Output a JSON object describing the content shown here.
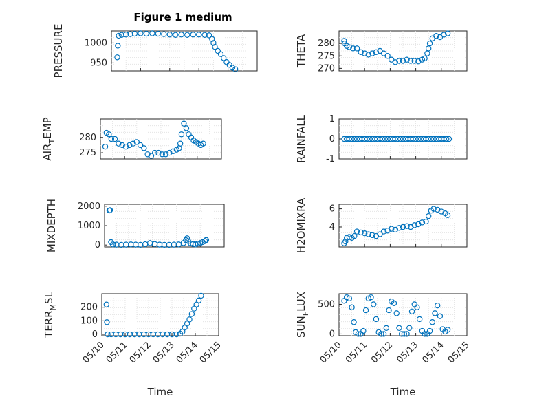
{
  "figure": {
    "title": "Figure 1 medium",
    "marker_color": "#0072BD"
  },
  "chart_data": [
    {
      "type": "scatter",
      "id": "pressure",
      "ylabel": "PRESSURE",
      "xlim": [
        0,
        5
      ],
      "ylim": [
        930,
        1030
      ],
      "yticks": [
        950,
        1000
      ],
      "ytick_labels": [
        "950",
        "1000"
      ],
      "xticks": [
        0,
        1,
        2,
        3,
        4,
        5
      ],
      "xtick_labels": [],
      "points": [
        [
          0.2,
          964
        ],
        [
          0.22,
          993
        ],
        [
          0.25,
          1018
        ],
        [
          0.35,
          1020
        ],
        [
          0.5,
          1021
        ],
        [
          0.65,
          1022
        ],
        [
          0.8,
          1023
        ],
        [
          1.0,
          1024
        ],
        [
          1.2,
          1023
        ],
        [
          1.4,
          1024
        ],
        [
          1.6,
          1023
        ],
        [
          1.8,
          1022
        ],
        [
          2.0,
          1021
        ],
        [
          2.2,
          1020
        ],
        [
          2.4,
          1021
        ],
        [
          2.6,
          1020
        ],
        [
          2.8,
          1021
        ],
        [
          3.0,
          1021
        ],
        [
          3.2,
          1020
        ],
        [
          3.35,
          1019
        ],
        [
          3.45,
          1010
        ],
        [
          3.5,
          1000
        ],
        [
          3.55,
          990
        ],
        [
          3.65,
          980
        ],
        [
          3.75,
          972
        ],
        [
          3.85,
          962
        ],
        [
          3.95,
          952
        ],
        [
          4.05,
          945
        ],
        [
          4.15,
          938
        ],
        [
          4.25,
          934
        ]
      ]
    },
    {
      "type": "scatter",
      "id": "theta",
      "ylabel": "THETA",
      "xlim": [
        0,
        5
      ],
      "ylim": [
        269,
        285
      ],
      "yticks": [
        270,
        275,
        280
      ],
      "ytick_labels": [
        "270",
        "275",
        "280"
      ],
      "xticks": [
        0,
        1,
        2,
        3,
        4,
        5
      ],
      "xtick_labels": [],
      "points": [
        [
          0.2,
          281
        ],
        [
          0.22,
          280
        ],
        [
          0.3,
          279
        ],
        [
          0.4,
          278.5
        ],
        [
          0.55,
          278
        ],
        [
          0.7,
          278
        ],
        [
          0.85,
          276.5
        ],
        [
          1.0,
          276
        ],
        [
          1.15,
          275.5
        ],
        [
          1.3,
          276
        ],
        [
          1.45,
          276.5
        ],
        [
          1.6,
          277
        ],
        [
          1.75,
          276
        ],
        [
          1.9,
          275
        ],
        [
          2.05,
          273.5
        ],
        [
          2.2,
          272.5
        ],
        [
          2.35,
          273
        ],
        [
          2.5,
          273
        ],
        [
          2.65,
          273.5
        ],
        [
          2.8,
          273
        ],
        [
          2.95,
          273
        ],
        [
          3.1,
          272.8
        ],
        [
          3.25,
          273.5
        ],
        [
          3.35,
          274
        ],
        [
          3.45,
          276
        ],
        [
          3.5,
          278
        ],
        [
          3.55,
          280
        ],
        [
          3.65,
          282
        ],
        [
          3.8,
          283
        ],
        [
          3.95,
          282.5
        ],
        [
          4.1,
          283.5
        ],
        [
          4.25,
          284
        ]
      ]
    },
    {
      "type": "scatter",
      "id": "air_temp",
      "ylabel": "AIR_TEMP",
      "xlim": [
        0,
        5
      ],
      "ylim": [
        273,
        286
      ],
      "yticks": [
        275,
        280
      ],
      "ytick_labels": [
        "275",
        "280"
      ],
      "xticks": [
        0,
        1,
        2,
        3,
        4,
        5
      ],
      "xtick_labels": [],
      "points": [
        [
          0.2,
          277
        ],
        [
          0.25,
          281.5
        ],
        [
          0.35,
          281
        ],
        [
          0.45,
          279.5
        ],
        [
          0.6,
          279.5
        ],
        [
          0.75,
          278
        ],
        [
          0.9,
          277.5
        ],
        [
          1.05,
          277
        ],
        [
          1.2,
          277.5
        ],
        [
          1.35,
          278
        ],
        [
          1.5,
          278.5
        ],
        [
          1.65,
          277.5
        ],
        [
          1.8,
          276.5
        ],
        [
          1.95,
          274.5
        ],
        [
          2.1,
          274
        ],
        [
          2.25,
          275
        ],
        [
          2.4,
          275
        ],
        [
          2.55,
          274.5
        ],
        [
          2.7,
          274.5
        ],
        [
          2.85,
          275
        ],
        [
          3.0,
          275.5
        ],
        [
          3.15,
          276
        ],
        [
          3.25,
          276.5
        ],
        [
          3.3,
          278
        ],
        [
          3.35,
          281
        ],
        [
          3.45,
          284.5
        ],
        [
          3.55,
          283
        ],
        [
          3.65,
          281
        ],
        [
          3.75,
          280
        ],
        [
          3.85,
          279
        ],
        [
          3.95,
          278.5
        ],
        [
          4.05,
          278
        ],
        [
          4.15,
          277.5
        ],
        [
          4.25,
          278
        ]
      ]
    },
    {
      "type": "scatter",
      "id": "rainfall",
      "ylabel": "RAINFALL",
      "xlim": [
        0,
        5
      ],
      "ylim": [
        -1,
        1
      ],
      "yticks": [
        -1,
        0,
        1
      ],
      "ytick_labels": [
        "-1",
        "0",
        "1"
      ],
      "xticks": [
        0,
        1,
        2,
        3,
        4,
        5
      ],
      "xtick_labels": [],
      "points": [
        [
          0.2,
          0
        ],
        [
          0.3,
          0
        ],
        [
          0.4,
          0
        ],
        [
          0.5,
          0
        ],
        [
          0.6,
          0
        ],
        [
          0.7,
          0
        ],
        [
          0.8,
          0
        ],
        [
          0.9,
          0
        ],
        [
          1.0,
          0
        ],
        [
          1.1,
          0
        ],
        [
          1.2,
          0
        ],
        [
          1.3,
          0
        ],
        [
          1.4,
          0
        ],
        [
          1.5,
          0
        ],
        [
          1.6,
          0
        ],
        [
          1.7,
          0
        ],
        [
          1.8,
          0
        ],
        [
          1.9,
          0
        ],
        [
          2.0,
          0
        ],
        [
          2.1,
          0
        ],
        [
          2.2,
          0
        ],
        [
          2.3,
          0
        ],
        [
          2.4,
          0
        ],
        [
          2.5,
          0
        ],
        [
          2.6,
          0
        ],
        [
          2.7,
          0
        ],
        [
          2.8,
          0
        ],
        [
          2.9,
          0
        ],
        [
          3.0,
          0
        ],
        [
          3.1,
          0
        ],
        [
          3.2,
          0
        ],
        [
          3.3,
          0
        ],
        [
          3.4,
          0
        ],
        [
          3.5,
          0
        ],
        [
          3.6,
          0
        ],
        [
          3.7,
          0
        ],
        [
          3.8,
          0
        ],
        [
          3.9,
          0
        ],
        [
          4.0,
          0
        ],
        [
          4.1,
          0
        ],
        [
          4.2,
          0
        ],
        [
          4.3,
          0
        ]
      ]
    },
    {
      "type": "scatter",
      "id": "mixdepth",
      "ylabel": "MIXDEPTH",
      "xlim": [
        0,
        5
      ],
      "ylim": [
        -100,
        2100
      ],
      "yticks": [
        0,
        1000,
        2000
      ],
      "ytick_labels": [
        "0",
        "1000",
        "2000"
      ],
      "xticks": [
        0,
        1,
        2,
        3,
        4,
        5
      ],
      "xtick_labels": [],
      "points": [
        [
          0.2,
          1780
        ],
        [
          0.23,
          1800
        ],
        [
          0.27,
          150
        ],
        [
          0.35,
          30
        ],
        [
          0.5,
          20
        ],
        [
          0.7,
          10
        ],
        [
          0.9,
          20
        ],
        [
          1.1,
          30
        ],
        [
          1.3,
          20
        ],
        [
          1.5,
          10
        ],
        [
          1.7,
          40
        ],
        [
          1.9,
          100
        ],
        [
          2.1,
          50
        ],
        [
          2.3,
          20
        ],
        [
          2.5,
          10
        ],
        [
          2.7,
          10
        ],
        [
          2.9,
          20
        ],
        [
          3.1,
          30
        ],
        [
          3.3,
          100
        ],
        [
          3.4,
          250
        ],
        [
          3.45,
          350
        ],
        [
          3.5,
          200
        ],
        [
          3.6,
          80
        ],
        [
          3.7,
          50
        ],
        [
          3.8,
          30
        ],
        [
          3.9,
          70
        ],
        [
          4.0,
          100
        ],
        [
          4.1,
          150
        ],
        [
          4.2,
          200
        ],
        [
          4.25,
          260
        ]
      ]
    },
    {
      "type": "scatter",
      "id": "h2omixra",
      "ylabel": "H2OMIXRA",
      "xlim": [
        0,
        5
      ],
      "ylim": [
        1.8,
        6.5
      ],
      "yticks": [
        4,
        6
      ],
      "ytick_labels": [
        "4",
        "6"
      ],
      "xticks": [
        0,
        1,
        2,
        3,
        4,
        5
      ],
      "xtick_labels": [],
      "points": [
        [
          0.2,
          2.2
        ],
        [
          0.25,
          2.4
        ],
        [
          0.3,
          2.8
        ],
        [
          0.4,
          2.9
        ],
        [
          0.5,
          2.8
        ],
        [
          0.6,
          3.0
        ],
        [
          0.7,
          3.5
        ],
        [
          0.85,
          3.4
        ],
        [
          1.0,
          3.3
        ],
        [
          1.15,
          3.2
        ],
        [
          1.3,
          3.1
        ],
        [
          1.45,
          3.0
        ],
        [
          1.6,
          3.2
        ],
        [
          1.75,
          3.5
        ],
        [
          1.9,
          3.6
        ],
        [
          2.05,
          3.8
        ],
        [
          2.2,
          3.7
        ],
        [
          2.35,
          3.9
        ],
        [
          2.5,
          4.0
        ],
        [
          2.65,
          4.1
        ],
        [
          2.8,
          4.0
        ],
        [
          2.95,
          4.2
        ],
        [
          3.1,
          4.3
        ],
        [
          3.25,
          4.5
        ],
        [
          3.4,
          4.6
        ],
        [
          3.5,
          5.2
        ],
        [
          3.6,
          5.8
        ],
        [
          3.7,
          6.0
        ],
        [
          3.85,
          5.9
        ],
        [
          4.0,
          5.7
        ],
        [
          4.15,
          5.5
        ],
        [
          4.25,
          5.3
        ]
      ]
    },
    {
      "type": "scatter",
      "id": "terr_msl",
      "ylabel": "TERR_MSL",
      "xlim": [
        0,
        5
      ],
      "ylim": [
        -10,
        300
      ],
      "yticks": [
        0,
        100,
        200
      ],
      "ytick_labels": [
        "0",
        "100",
        "200"
      ],
      "xticks": [
        0,
        1,
        2,
        3,
        4,
        5
      ],
      "xtick_labels": [
        "05/10",
        "05/11",
        "05/12",
        "05/13",
        "05/14",
        "05/15"
      ],
      "xlabel": "Time",
      "points": [
        [
          0.2,
          220
        ],
        [
          0.22,
          90
        ],
        [
          0.25,
          0
        ],
        [
          0.4,
          0
        ],
        [
          0.6,
          0
        ],
        [
          0.8,
          0
        ],
        [
          1.0,
          0
        ],
        [
          1.2,
          0
        ],
        [
          1.4,
          0
        ],
        [
          1.6,
          0
        ],
        [
          1.8,
          0
        ],
        [
          2.0,
          0
        ],
        [
          2.2,
          0
        ],
        [
          2.4,
          0
        ],
        [
          2.6,
          0
        ],
        [
          2.8,
          0
        ],
        [
          3.0,
          0
        ],
        [
          3.2,
          0
        ],
        [
          3.35,
          5
        ],
        [
          3.45,
          20
        ],
        [
          3.55,
          50
        ],
        [
          3.65,
          80
        ],
        [
          3.75,
          110
        ],
        [
          3.85,
          150
        ],
        [
          3.95,
          190
        ],
        [
          4.05,
          220
        ],
        [
          4.15,
          250
        ],
        [
          4.25,
          285
        ]
      ]
    },
    {
      "type": "scatter",
      "id": "sun_flux",
      "ylabel": "SUN_FLUX",
      "xlim": [
        0,
        5
      ],
      "ylim": [
        -30,
        680
      ],
      "yticks": [
        0,
        500
      ],
      "ytick_labels": [
        "0",
        "500"
      ],
      "xticks": [
        0,
        1,
        2,
        3,
        4,
        5
      ],
      "xtick_labels": [
        "05/10",
        "05/11",
        "05/12",
        "05/13",
        "05/14",
        "05/15"
      ],
      "xlabel": "Time",
      "points": [
        [
          0.2,
          560
        ],
        [
          0.3,
          620
        ],
        [
          0.4,
          600
        ],
        [
          0.5,
          450
        ],
        [
          0.58,
          200
        ],
        [
          0.65,
          30
        ],
        [
          0.75,
          0
        ],
        [
          0.85,
          0
        ],
        [
          0.95,
          50
        ],
        [
          1.05,
          400
        ],
        [
          1.15,
          600
        ],
        [
          1.25,
          620
        ],
        [
          1.35,
          500
        ],
        [
          1.45,
          250
        ],
        [
          1.55,
          30
        ],
        [
          1.65,
          0
        ],
        [
          1.75,
          0
        ],
        [
          1.85,
          100
        ],
        [
          1.95,
          400
        ],
        [
          2.05,
          550
        ],
        [
          2.15,
          520
        ],
        [
          2.25,
          350
        ],
        [
          2.35,
          100
        ],
        [
          2.45,
          0
        ],
        [
          2.55,
          0
        ],
        [
          2.65,
          0
        ],
        [
          2.75,
          100
        ],
        [
          2.85,
          380
        ],
        [
          2.95,
          500
        ],
        [
          3.05,
          450
        ],
        [
          3.15,
          250
        ],
        [
          3.25,
          50
        ],
        [
          3.35,
          0
        ],
        [
          3.45,
          0
        ],
        [
          3.55,
          50
        ],
        [
          3.65,
          200
        ],
        [
          3.75,
          350
        ],
        [
          3.85,
          480
        ],
        [
          3.95,
          300
        ],
        [
          4.05,
          80
        ],
        [
          4.15,
          40
        ],
        [
          4.25,
          70
        ]
      ]
    }
  ]
}
